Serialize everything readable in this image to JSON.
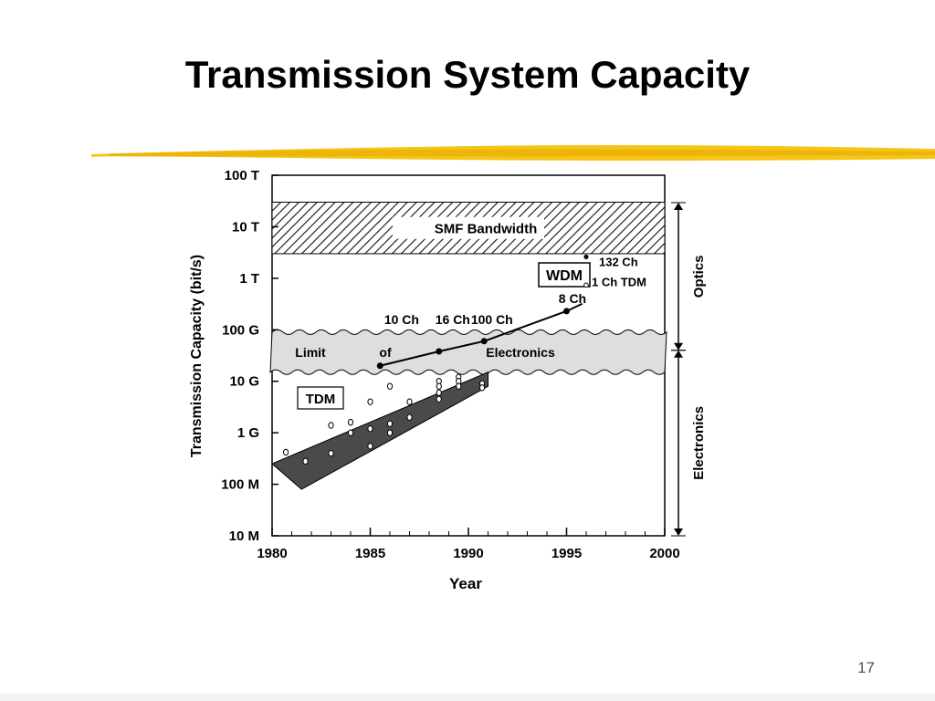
{
  "slide": {
    "title": "Transmission System Capacity",
    "page_number": "17",
    "accent_color": "#F5C518"
  },
  "chart_data": {
    "type": "scatter",
    "title": "",
    "xlabel": "Year",
    "ylabel": "Transmission Capacity  (bit/s)",
    "x_range": [
      1980,
      2000
    ],
    "y_scale": "log",
    "y_range": [
      "10 M",
      "100 T"
    ],
    "x_ticks": [
      "1980",
      "1985",
      "1990",
      "1995",
      "2000"
    ],
    "y_ticks": [
      "10 M",
      "100 M",
      "1 G",
      "10 G",
      "100 G",
      "1 T",
      "10 T",
      "100 T"
    ],
    "grid": false,
    "regions": [
      {
        "label": "SMF Bandwidth",
        "x": [
          1980,
          2000
        ],
        "y": [
          "3 T",
          "30 T"
        ],
        "fill": "hatched"
      },
      {
        "label_parts": [
          "Limit",
          "of",
          "Electronics"
        ],
        "x": [
          1980,
          2000
        ],
        "y": [
          "15 G",
          "90 G"
        ],
        "fill": "gray-wavy"
      },
      {
        "label": "TDM",
        "fill": "dark",
        "lower_edge": [
          [
            1981.5,
            "80 M"
          ],
          [
            1991,
            "8 G"
          ]
        ],
        "upper_edge": [
          [
            1980,
            "250 M"
          ],
          [
            1991,
            "15 G"
          ]
        ]
      }
    ],
    "series": [
      {
        "name": "WDM",
        "points": [
          {
            "year": 1985.5,
            "value": "20 G",
            "label": ""
          },
          {
            "year": 1988.5,
            "value": "38 G",
            "label": ""
          },
          {
            "year": 1990.8,
            "value": "60 G",
            "label": ""
          },
          {
            "year": 1995,
            "value": "230 G",
            "label": ""
          }
        ],
        "extend_to": {
          "year": 1995.8,
          "value": "320 G"
        },
        "annotations": [
          "10 Ch",
          "16 Ch",
          "100 Ch",
          "8 Ch"
        ]
      },
      {
        "name": "TDM",
        "points": [
          {
            "year": 1980.7,
            "value": "420 M"
          },
          {
            "year": 1981.7,
            "value": "280 M"
          },
          {
            "year": 1983,
            "value": "1.4 G"
          },
          {
            "year": 1983,
            "value": "400 M"
          },
          {
            "year": 1984,
            "value": "1.6 G"
          },
          {
            "year": 1984,
            "value": "1.0 G"
          },
          {
            "year": 1985,
            "value": "4 G"
          },
          {
            "year": 1985,
            "value": "1.2 G"
          },
          {
            "year": 1985,
            "value": "550 M"
          },
          {
            "year": 1986,
            "value": "8 G"
          },
          {
            "year": 1986,
            "value": "1.5 G"
          },
          {
            "year": 1986,
            "value": "1.0 G"
          },
          {
            "year": 1987,
            "value": "4 G"
          },
          {
            "year": 1987,
            "value": "2 G"
          },
          {
            "year": 1988.5,
            "value": "10 G"
          },
          {
            "year": 1988.5,
            "value": "8 G"
          },
          {
            "year": 1988.5,
            "value": "6 G"
          },
          {
            "year": 1988.5,
            "value": "4.5 G"
          },
          {
            "year": 1989.5,
            "value": "12 G"
          },
          {
            "year": 1989.5,
            "value": "10 G"
          },
          {
            "year": 1989.5,
            "value": "8 G"
          },
          {
            "year": 1990.7,
            "value": "9 G"
          },
          {
            "year": 1990.7,
            "value": "7.5 G"
          }
        ]
      }
    ],
    "point_annotations": [
      {
        "label": "132 Ch",
        "year": 1996,
        "value": "2.6 T"
      },
      {
        "label": "1 Ch TDM",
        "year": 1996,
        "value": "800 G"
      }
    ],
    "side_brackets": [
      {
        "label": "Optics",
        "range": [
          "100 T",
          "40 G"
        ]
      },
      {
        "label": "Electronics",
        "range": [
          "40 G",
          "10 M"
        ]
      }
    ]
  }
}
